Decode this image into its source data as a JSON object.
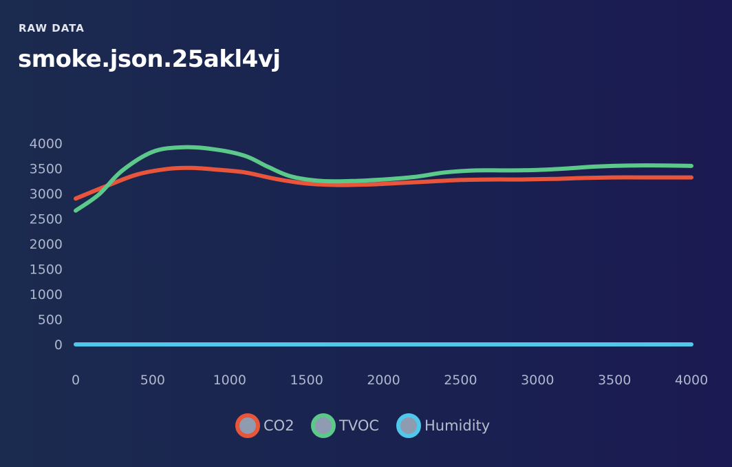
{
  "header": {
    "eyebrow": "RAW DATA",
    "title": "smoke.json.25akl4vj"
  },
  "chart_data": {
    "type": "line",
    "title": "",
    "xlabel": "",
    "ylabel": "",
    "xlim": [
      0,
      4000
    ],
    "ylim": [
      0,
      4000
    ],
    "x_ticks": [
      0,
      500,
      1000,
      1500,
      2000,
      2500,
      3000,
      3500,
      4000
    ],
    "y_ticks": [
      0,
      500,
      1000,
      1500,
      2000,
      2500,
      3000,
      3500,
      4000
    ],
    "grid": false,
    "legend_position": "bottom",
    "series": [
      {
        "name": "CO2",
        "color": "#e8553b",
        "points": [
          [
            0,
            2900
          ],
          [
            200,
            3150
          ],
          [
            400,
            3380
          ],
          [
            600,
            3490
          ],
          [
            750,
            3510
          ],
          [
            900,
            3480
          ],
          [
            1100,
            3420
          ],
          [
            1300,
            3290
          ],
          [
            1500,
            3200
          ],
          [
            1700,
            3170
          ],
          [
            1900,
            3180
          ],
          [
            2100,
            3210
          ],
          [
            2300,
            3240
          ],
          [
            2500,
            3270
          ],
          [
            2700,
            3280
          ],
          [
            2900,
            3280
          ],
          [
            3100,
            3290
          ],
          [
            3300,
            3310
          ],
          [
            3500,
            3320
          ],
          [
            3700,
            3320
          ],
          [
            4000,
            3320
          ]
        ]
      },
      {
        "name": "TVOC",
        "color": "#5cc98a",
        "points": [
          [
            0,
            2660
          ],
          [
            150,
            2980
          ],
          [
            300,
            3450
          ],
          [
            500,
            3830
          ],
          [
            700,
            3920
          ],
          [
            900,
            3880
          ],
          [
            1100,
            3750
          ],
          [
            1250,
            3530
          ],
          [
            1400,
            3340
          ],
          [
            1600,
            3250
          ],
          [
            1800,
            3250
          ],
          [
            2000,
            3280
          ],
          [
            2200,
            3330
          ],
          [
            2400,
            3420
          ],
          [
            2600,
            3460
          ],
          [
            2800,
            3460
          ],
          [
            3000,
            3470
          ],
          [
            3200,
            3500
          ],
          [
            3400,
            3540
          ],
          [
            3700,
            3560
          ],
          [
            4000,
            3550
          ]
        ]
      },
      {
        "name": "Humidity",
        "color": "#4fc8ec",
        "points": [
          [
            0,
            0
          ],
          [
            1000,
            0
          ],
          [
            2000,
            0
          ],
          [
            3000,
            0
          ],
          [
            4000,
            0
          ]
        ]
      }
    ]
  }
}
